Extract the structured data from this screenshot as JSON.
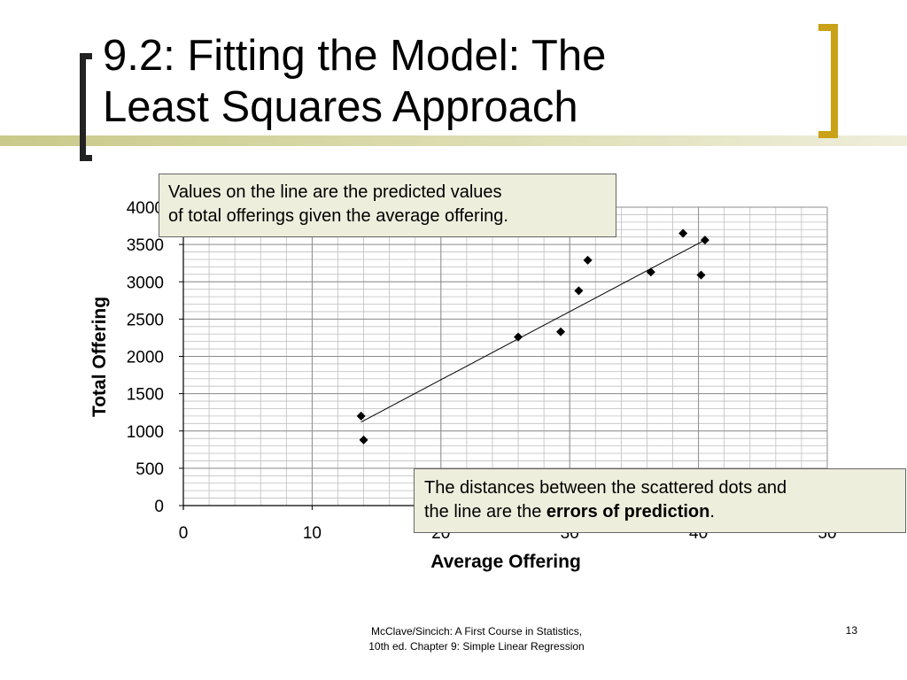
{
  "slide": {
    "title_line1": "9.2: Fitting the Model: The",
    "title_line2": "Least Squares Approach",
    "footer_line1": "McClave/Sincich: A First Course in Statistics,",
    "footer_line2": "10th ed. Chapter 9: Simple Linear Regression",
    "slide_number": "13",
    "accent_color": "#c9a217",
    "bar_color": "#c9c98a"
  },
  "callouts": {
    "top_line1": "Values on the line are the predicted values",
    "top_line2": "of total offerings given the average offering.",
    "bottom_line1": "The distances between the scattered dots and",
    "bottom_prefix": "the line are the ",
    "bottom_bold": "errors of prediction",
    "bottom_suffix": "."
  },
  "chart_data": {
    "type": "scatter",
    "xlabel": "Average Offering",
    "ylabel": "Total Offering",
    "xlim": [
      0,
      50
    ],
    "ylim": [
      0,
      4000
    ],
    "x_ticks": [
      0,
      10,
      20,
      30,
      40,
      50
    ],
    "y_ticks": [
      0,
      500,
      1000,
      1500,
      2000,
      2500,
      3000,
      3500,
      4000
    ],
    "grid": true,
    "points": [
      {
        "x": 13.8,
        "y": 1200
      },
      {
        "x": 14.0,
        "y": 880
      },
      {
        "x": 26.0,
        "y": 2260
      },
      {
        "x": 29.3,
        "y": 2330
      },
      {
        "x": 30.7,
        "y": 2880
      },
      {
        "x": 31.4,
        "y": 3290
      },
      {
        "x": 36.3,
        "y": 3130
      },
      {
        "x": 38.8,
        "y": 3650
      },
      {
        "x": 40.2,
        "y": 3090
      },
      {
        "x": 40.5,
        "y": 3560
      }
    ],
    "fit_line": {
      "x": [
        13.8,
        40.5
      ],
      "y": [
        1120,
        3560
      ]
    }
  }
}
